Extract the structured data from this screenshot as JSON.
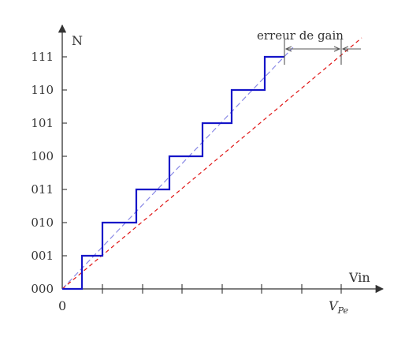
{
  "axes": {
    "x_label": "Vin",
    "y_label": "N",
    "x_origin_label": "0",
    "x_end_label_main": "V",
    "x_end_label_sub": "Pe"
  },
  "codes": [
    "000",
    "001",
    "010",
    "011",
    "100",
    "101",
    "110",
    "111"
  ],
  "annotation": {
    "label": "erreur de gain"
  },
  "colors": {
    "staircase": "#1515c8",
    "ideal_line": "#8a8ae6",
    "gain_error_line": "#e01515",
    "axis": "#333333",
    "annotation": "#555555"
  }
}
